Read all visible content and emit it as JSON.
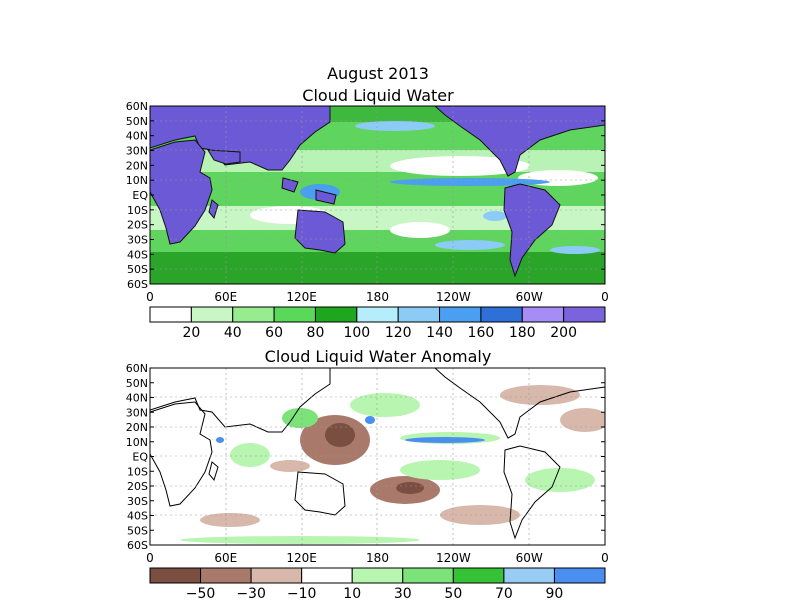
{
  "page_title": "August 2013",
  "chart_data": [
    {
      "type": "heatmap",
      "title": "Cloud Liquid Water",
      "ylabels": [
        "60N",
        "50N",
        "40N",
        "30N",
        "20N",
        "10N",
        "EQ",
        "10S",
        "20S",
        "30S",
        "40S",
        "50S",
        "60S"
      ],
      "xlabels": [
        "0",
        "60E",
        "120E",
        "180",
        "120W",
        "60W",
        "0"
      ],
      "ylim": [
        -60,
        60
      ],
      "xlim": [
        0,
        360
      ],
      "land_color": "#6c59d6",
      "grid": true,
      "colorbar": {
        "labels": [
          "20",
          "40",
          "60",
          "80",
          "100",
          "120",
          "140",
          "160",
          "180",
          "200"
        ],
        "colors": [
          "#ffffff",
          "#c8f7c5",
          "#96ec8e",
          "#5ad85a",
          "#1fa61f",
          "#b5eefa",
          "#8ccbf5",
          "#4a9ff0",
          "#2f6fd8",
          "#a68cf5",
          "#7b63de"
        ]
      }
    },
    {
      "type": "heatmap",
      "title": "Cloud Liquid Water Anomaly",
      "ylabels": [
        "60N",
        "50N",
        "40N",
        "30N",
        "20N",
        "10N",
        "EQ",
        "10S",
        "20S",
        "30S",
        "40S",
        "50S",
        "60S"
      ],
      "xlabels": [
        "0",
        "60E",
        "120E",
        "180",
        "120W",
        "60W",
        "0"
      ],
      "ylim": [
        -60,
        60
      ],
      "xlim": [
        0,
        360
      ],
      "grid": true,
      "colorbar": {
        "labels": [
          "-50",
          "-30",
          "-10",
          "10",
          "30",
          "50",
          "70",
          "90"
        ],
        "colors": [
          "#7a4e40",
          "#a97a6c",
          "#d9b8ac",
          "#ffffff",
          "#b8f5b0",
          "#7ce27a",
          "#36c236",
          "#98ccf5",
          "#4a8ff0"
        ]
      }
    }
  ]
}
